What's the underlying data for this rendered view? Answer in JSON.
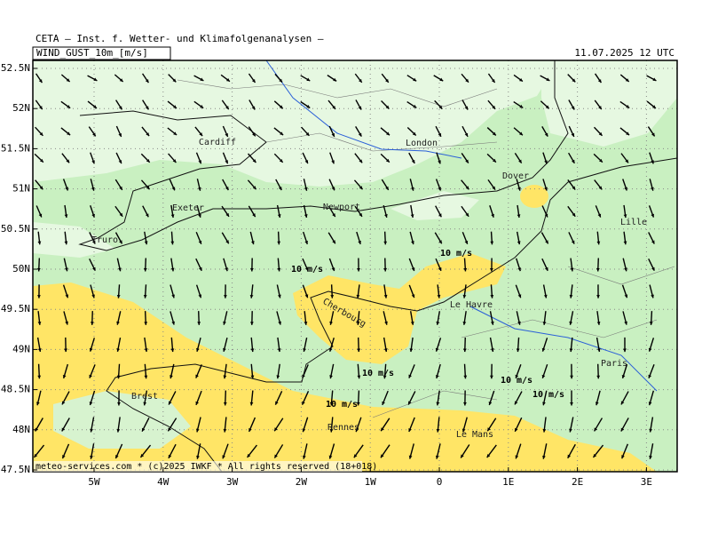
{
  "header": {
    "title": "CETA – Inst. f. Wetter- und Klimafolgenanalysen –",
    "field": "WIND_GUST_10m_[m/s]",
    "valid_time": "11.07.2025 12 UTC"
  },
  "latitude_labels": [
    "52.5N",
    "52N",
    "51.5N",
    "51N",
    "50.5N",
    "50N",
    "49.5N",
    "49N",
    "48.5N",
    "48N",
    "47.5N"
  ],
  "longitude_labels": [
    "5W",
    "4W",
    "3W",
    "2W",
    "1W",
    "0",
    "1E",
    "2E",
    "3E"
  ],
  "places": [
    "Cardiff",
    "London",
    "Dover",
    "Exeter",
    "Newport",
    "Truro",
    "Lille",
    "Cherbourg",
    "Le Havre",
    "Paris",
    "Brest",
    "Rennes",
    "Le Mans"
  ],
  "contour_labels": [
    "10 m/s",
    "10 m/s",
    "10 m/s",
    "10 m/s",
    "10 m/s",
    "10 m/s"
  ],
  "footer": "meteo-services.com * (c)2025 IWKF * All rights reserved (18+018)"
}
